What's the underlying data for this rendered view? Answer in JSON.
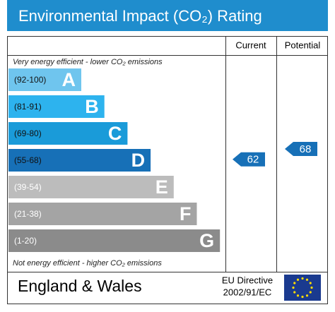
{
  "title": "Environmental Impact (CO₂) Rating",
  "columns": {
    "current": "Current",
    "potential": "Potential"
  },
  "top_note": "Very energy efficient - lower CO₂ emissions",
  "bottom_note": "Not energy efficient - higher CO₂ emissions",
  "bands": [
    {
      "range": "(92-100)",
      "letter": "A",
      "color": "#6fc5ee"
    },
    {
      "range": "(81-91)",
      "letter": "B",
      "color": "#2db3ee"
    },
    {
      "range": "(69-80)",
      "letter": "C",
      "color": "#1a9bd9"
    },
    {
      "range": "(55-68)",
      "letter": "D",
      "color": "#1770b7"
    },
    {
      "range": "(39-54)",
      "letter": "E",
      "color": "#bcbcbc"
    },
    {
      "range": "(21-38)",
      "letter": "F",
      "color": "#a4a4a4"
    },
    {
      "range": "(1-20)",
      "letter": "G",
      "color": "#8b8b8b"
    }
  ],
  "current": 62,
  "potential": 68,
  "footer": {
    "region": "England & Wales",
    "directive_line1": "EU Directive",
    "directive_line2": "2002/91/EC"
  }
}
